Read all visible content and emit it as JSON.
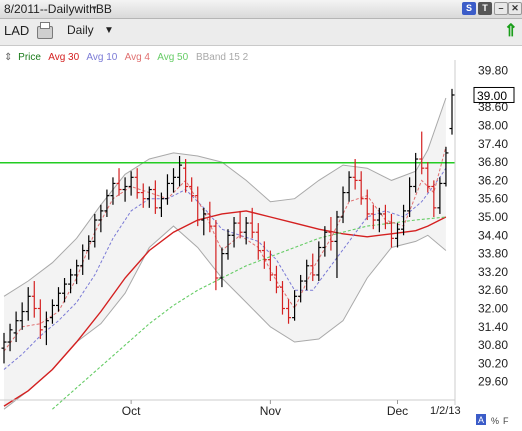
{
  "window": {
    "title": "8/2011--DailywithBB",
    "title_caret": "▾",
    "buttons": {
      "s": "S",
      "t": "T",
      "min": "–",
      "close": "✕"
    }
  },
  "toolbar": {
    "symbol": "LAD",
    "period": "Daily",
    "period_caret": "▼",
    "refresh_icon": "⇑"
  },
  "legend": {
    "icon": "⇕",
    "items": [
      {
        "label": "Price",
        "color": "#1a7a1a"
      },
      {
        "label": "Avg 30",
        "color": "#d42020"
      },
      {
        "label": "Avg 10",
        "color": "#7b7bd6"
      },
      {
        "label": "Avg 4",
        "color": "#e07070"
      },
      {
        "label": "Avg 50",
        "color": "#66cc66"
      },
      {
        "label": "BBand 15 2",
        "color": "#a9a9a9"
      }
    ]
  },
  "footer": {
    "a_label": "A",
    "pct_label": "%",
    "f_label": "F",
    "date_label": "1/2/13"
  },
  "chart_data": {
    "type": "ohlc",
    "ylim": [
      29.0,
      39.95
    ],
    "y_ticks": [
      39.8,
      38.6,
      38.0,
      37.4,
      36.8,
      36.2,
      35.6,
      35.0,
      34.4,
      33.8,
      33.2,
      32.6,
      32.0,
      31.4,
      30.8,
      30.2,
      29.6
    ],
    "y_tick_labels": [
      "39.80",
      "38.60",
      "38.00",
      "37.40",
      "36.80",
      "36.20",
      "35.60",
      "35.00",
      "34.40",
      "33.80",
      "33.20",
      "32.60",
      "32.00",
      "31.40",
      "30.80",
      "30.20",
      "29.60"
    ],
    "x_labels": [
      {
        "label": "Oct",
        "day": 21
      },
      {
        "label": "Nov",
        "day": 44
      },
      {
        "label": "Dec",
        "day": 65
      }
    ],
    "current_price": "39.00",
    "current_value": 39.0,
    "horizontal_line": {
      "value": 36.78,
      "color": "#22cc22"
    },
    "bars": [
      {
        "o": 30.7,
        "h": 31.2,
        "l": 30.2,
        "c": 30.9
      },
      {
        "o": 30.9,
        "h": 31.5,
        "l": 30.6,
        "c": 31.3
      },
      {
        "o": 31.2,
        "h": 31.9,
        "l": 30.9,
        "c": 31.6
      },
      {
        "o": 31.6,
        "h": 32.2,
        "l": 31.3,
        "c": 31.9
      },
      {
        "o": 31.9,
        "h": 32.7,
        "l": 31.6,
        "c": 32.4
      },
      {
        "o": 32.4,
        "h": 32.9,
        "l": 31.7,
        "c": 32.0
      },
      {
        "o": 32.0,
        "h": 32.3,
        "l": 31.0,
        "c": 31.3
      },
      {
        "o": 31.4,
        "h": 31.9,
        "l": 30.8,
        "c": 31.6
      },
      {
        "o": 31.7,
        "h": 32.3,
        "l": 31.5,
        "c": 32.1
      },
      {
        "o": 32.1,
        "h": 32.7,
        "l": 31.9,
        "c": 32.5
      },
      {
        "o": 32.5,
        "h": 33.0,
        "l": 32.2,
        "c": 32.8
      },
      {
        "o": 32.8,
        "h": 33.3,
        "l": 32.5,
        "c": 33.1
      },
      {
        "o": 33.1,
        "h": 33.6,
        "l": 32.8,
        "c": 33.4
      },
      {
        "o": 33.4,
        "h": 34.1,
        "l": 33.1,
        "c": 33.9
      },
      {
        "o": 33.9,
        "h": 34.4,
        "l": 33.6,
        "c": 34.2
      },
      {
        "o": 34.2,
        "h": 35.1,
        "l": 34.0,
        "c": 34.9
      },
      {
        "o": 34.9,
        "h": 35.4,
        "l": 34.5,
        "c": 35.2
      },
      {
        "o": 35.2,
        "h": 35.9,
        "l": 35.0,
        "c": 35.7
      },
      {
        "o": 35.7,
        "h": 36.3,
        "l": 35.4,
        "c": 36.1
      },
      {
        "o": 36.1,
        "h": 36.6,
        "l": 35.7,
        "c": 35.9
      },
      {
        "o": 35.9,
        "h": 36.3,
        "l": 35.5,
        "c": 36.0
      },
      {
        "o": 36.0,
        "h": 36.5,
        "l": 35.7,
        "c": 36.3
      },
      {
        "o": 36.3,
        "h": 36.6,
        "l": 35.6,
        "c": 35.8
      },
      {
        "o": 35.8,
        "h": 36.1,
        "l": 35.3,
        "c": 35.6
      },
      {
        "o": 35.6,
        "h": 36.0,
        "l": 35.3,
        "c": 35.9
      },
      {
        "o": 35.9,
        "h": 36.2,
        "l": 35.1,
        "c": 35.3
      },
      {
        "o": 35.3,
        "h": 35.8,
        "l": 35.0,
        "c": 35.6
      },
      {
        "o": 35.6,
        "h": 36.4,
        "l": 35.4,
        "c": 36.1
      },
      {
        "o": 36.1,
        "h": 36.6,
        "l": 35.8,
        "c": 36.3
      },
      {
        "o": 36.3,
        "h": 37.0,
        "l": 36.0,
        "c": 36.7
      },
      {
        "o": 36.6,
        "h": 36.9,
        "l": 35.8,
        "c": 36.0
      },
      {
        "o": 36.0,
        "h": 36.3,
        "l": 35.5,
        "c": 35.7
      },
      {
        "o": 35.7,
        "h": 36.0,
        "l": 34.7,
        "c": 34.9
      },
      {
        "o": 34.9,
        "h": 35.3,
        "l": 34.4,
        "c": 35.1
      },
      {
        "o": 35.1,
        "h": 35.5,
        "l": 34.5,
        "c": 34.7
      },
      {
        "o": 34.7,
        "h": 34.9,
        "l": 32.6,
        "c": 33.0
      },
      {
        "o": 33.0,
        "h": 34.0,
        "l": 32.7,
        "c": 33.8
      },
      {
        "o": 33.8,
        "h": 34.6,
        "l": 33.6,
        "c": 34.4
      },
      {
        "o": 34.4,
        "h": 35.0,
        "l": 34.0,
        "c": 34.8
      },
      {
        "o": 34.8,
        "h": 35.2,
        "l": 34.3,
        "c": 34.5
      },
      {
        "o": 34.5,
        "h": 35.0,
        "l": 34.1,
        "c": 34.8
      },
      {
        "o": 34.8,
        "h": 35.3,
        "l": 34.3,
        "c": 34.5
      },
      {
        "o": 34.5,
        "h": 34.8,
        "l": 33.6,
        "c": 33.9
      },
      {
        "o": 33.9,
        "h": 34.2,
        "l": 33.3,
        "c": 33.6
      },
      {
        "o": 33.6,
        "h": 33.9,
        "l": 32.9,
        "c": 33.1
      },
      {
        "o": 33.1,
        "h": 33.4,
        "l": 32.5,
        "c": 32.7
      },
      {
        "o": 32.7,
        "h": 32.9,
        "l": 31.8,
        "c": 32.0
      },
      {
        "o": 32.0,
        "h": 32.3,
        "l": 31.5,
        "c": 31.7
      },
      {
        "o": 31.7,
        "h": 32.6,
        "l": 31.6,
        "c": 32.4
      },
      {
        "o": 32.4,
        "h": 33.1,
        "l": 32.2,
        "c": 32.9
      },
      {
        "o": 32.9,
        "h": 33.6,
        "l": 32.6,
        "c": 33.4
      },
      {
        "o": 33.4,
        "h": 33.8,
        "l": 32.9,
        "c": 33.1
      },
      {
        "o": 33.1,
        "h": 34.2,
        "l": 32.9,
        "c": 34.0
      },
      {
        "o": 34.0,
        "h": 34.7,
        "l": 33.7,
        "c": 34.5
      },
      {
        "o": 34.5,
        "h": 35.0,
        "l": 33.9,
        "c": 34.2
      },
      {
        "o": 34.2,
        "h": 35.2,
        "l": 33.0,
        "c": 35.0
      },
      {
        "o": 35.0,
        "h": 36.0,
        "l": 34.8,
        "c": 35.8
      },
      {
        "o": 35.8,
        "h": 36.5,
        "l": 35.5,
        "c": 36.3
      },
      {
        "o": 36.3,
        "h": 36.9,
        "l": 35.9,
        "c": 36.2
      },
      {
        "o": 36.2,
        "h": 36.5,
        "l": 35.4,
        "c": 35.6
      },
      {
        "o": 35.6,
        "h": 35.9,
        "l": 34.9,
        "c": 35.1
      },
      {
        "o": 35.1,
        "h": 35.4,
        "l": 34.6,
        "c": 34.9
      },
      {
        "o": 34.9,
        "h": 35.3,
        "l": 34.5,
        "c": 35.1
      },
      {
        "o": 35.1,
        "h": 35.4,
        "l": 34.6,
        "c": 34.8
      },
      {
        "o": 34.8,
        "h": 35.1,
        "l": 34.0,
        "c": 34.3
      },
      {
        "o": 34.3,
        "h": 34.8,
        "l": 34.0,
        "c": 34.6
      },
      {
        "o": 34.6,
        "h": 35.4,
        "l": 34.4,
        "c": 35.2
      },
      {
        "o": 35.2,
        "h": 36.3,
        "l": 35.0,
        "c": 36.0
      },
      {
        "o": 36.0,
        "h": 37.1,
        "l": 35.8,
        "c": 36.9
      },
      {
        "o": 36.9,
        "h": 37.8,
        "l": 36.4,
        "c": 36.6
      },
      {
        "o": 36.6,
        "h": 36.8,
        "l": 35.8,
        "c": 36.0
      },
      {
        "o": 36.0,
        "h": 36.2,
        "l": 35.0,
        "c": 35.3
      },
      {
        "o": 35.3,
        "h": 36.3,
        "l": 35.1,
        "c": 36.1
      },
      {
        "o": 36.1,
        "h": 37.3,
        "l": 36.0,
        "c": 37.1
      },
      {
        "o": 37.9,
        "h": 39.2,
        "l": 37.7,
        "c": 39.0
      }
    ],
    "overlays": [
      {
        "name": "Avg 30",
        "color": "#d42020",
        "width": 1.4,
        "dash": "",
        "values": [
          [
            0,
            28.8
          ],
          [
            4,
            29.3
          ],
          [
            8,
            30.0
          ],
          [
            12,
            30.9
          ],
          [
            16,
            31.9
          ],
          [
            20,
            33.0
          ],
          [
            24,
            33.9
          ],
          [
            28,
            34.5
          ],
          [
            32,
            34.9
          ],
          [
            36,
            35.1
          ],
          [
            40,
            35.2
          ],
          [
            44,
            35.0
          ],
          [
            48,
            34.8
          ],
          [
            52,
            34.6
          ],
          [
            56,
            34.45
          ],
          [
            60,
            34.35
          ],
          [
            64,
            34.45
          ],
          [
            68,
            34.55
          ],
          [
            70,
            34.7
          ],
          [
            73,
            35.0
          ]
        ]
      },
      {
        "name": "Avg 50",
        "color": "#66cc66",
        "width": 1.1,
        "dash": "3,2",
        "values": [
          [
            8,
            28.7
          ],
          [
            12,
            29.4
          ],
          [
            16,
            30.1
          ],
          [
            20,
            30.8
          ],
          [
            24,
            31.5
          ],
          [
            28,
            32.1
          ],
          [
            32,
            32.6
          ],
          [
            36,
            33.0
          ],
          [
            40,
            33.4
          ],
          [
            44,
            33.7
          ],
          [
            48,
            34.0
          ],
          [
            52,
            34.3
          ],
          [
            56,
            34.5
          ],
          [
            60,
            34.7
          ],
          [
            64,
            34.8
          ],
          [
            68,
            34.9
          ],
          [
            73,
            35.0
          ]
        ]
      },
      {
        "name": "Avg 10",
        "color": "#7b7bd6",
        "width": 1.0,
        "dash": "3,2",
        "values": [
          [
            0,
            30.0
          ],
          [
            3,
            30.5
          ],
          [
            6,
            31.1
          ],
          [
            9,
            31.6
          ],
          [
            12,
            32.2
          ],
          [
            15,
            33.1
          ],
          [
            18,
            34.3
          ],
          [
            21,
            35.2
          ],
          [
            24,
            35.6
          ],
          [
            27,
            35.6
          ],
          [
            30,
            35.9
          ],
          [
            33,
            35.3
          ],
          [
            36,
            34.6
          ],
          [
            39,
            34.4
          ],
          [
            42,
            34.2
          ],
          [
            45,
            33.6
          ],
          [
            48,
            32.6
          ],
          [
            51,
            32.6
          ],
          [
            54,
            33.4
          ],
          [
            57,
            34.2
          ],
          [
            60,
            35.0
          ],
          [
            63,
            35.2
          ],
          [
            66,
            35.0
          ],
          [
            69,
            35.5
          ],
          [
            72,
            36.3
          ],
          [
            73,
            36.6
          ]
        ]
      },
      {
        "name": "Avg 4",
        "color": "#e07070",
        "width": 1.0,
        "dash": "3,2",
        "values": [
          [
            0,
            30.6
          ],
          [
            3,
            31.4
          ],
          [
            6,
            31.5
          ],
          [
            9,
            31.9
          ],
          [
            12,
            33.0
          ],
          [
            15,
            34.5
          ],
          [
            18,
            35.6
          ],
          [
            21,
            36.0
          ],
          [
            24,
            35.8
          ],
          [
            27,
            35.6
          ],
          [
            30,
            36.2
          ],
          [
            33,
            35.2
          ],
          [
            36,
            33.9
          ],
          [
            39,
            34.4
          ],
          [
            42,
            34.0
          ],
          [
            45,
            32.9
          ],
          [
            48,
            32.0
          ],
          [
            51,
            33.3
          ],
          [
            54,
            34.3
          ],
          [
            57,
            35.5
          ],
          [
            60,
            35.7
          ],
          [
            63,
            34.9
          ],
          [
            66,
            34.7
          ],
          [
            69,
            36.2
          ],
          [
            71,
            35.8
          ],
          [
            73,
            37.3
          ]
        ]
      }
    ],
    "bband": {
      "color": "#a9a9a9",
      "upper": [
        [
          0,
          32.4
        ],
        [
          4,
          32.9
        ],
        [
          8,
          33.5
        ],
        [
          12,
          34.3
        ],
        [
          16,
          35.4
        ],
        [
          20,
          36.4
        ],
        [
          24,
          36.9
        ],
        [
          28,
          37.1
        ],
        [
          32,
          37.0
        ],
        [
          36,
          36.8
        ],
        [
          40,
          36.2
        ],
        [
          44,
          35.5
        ],
        [
          48,
          35.6
        ],
        [
          52,
          36.2
        ],
        [
          56,
          36.7
        ],
        [
          60,
          36.6
        ],
        [
          64,
          36.2
        ],
        [
          68,
          36.5
        ],
        [
          70,
          37.2
        ],
        [
          73,
          38.9
        ]
      ],
      "lower": [
        [
          0,
          28.7
        ],
        [
          4,
          29.3
        ],
        [
          8,
          30.0
        ],
        [
          12,
          30.9
        ],
        [
          16,
          31.5
        ],
        [
          20,
          32.5
        ],
        [
          24,
          34.0
        ],
        [
          28,
          34.7
        ],
        [
          32,
          34.0
        ],
        [
          36,
          33.0
        ],
        [
          40,
          32.2
        ],
        [
          44,
          31.4
        ],
        [
          48,
          30.9
        ],
        [
          52,
          31.0
        ],
        [
          56,
          31.6
        ],
        [
          60,
          33.0
        ],
        [
          64,
          34.0
        ],
        [
          68,
          34.2
        ],
        [
          70,
          34.4
        ],
        [
          73,
          33.9
        ]
      ]
    }
  }
}
